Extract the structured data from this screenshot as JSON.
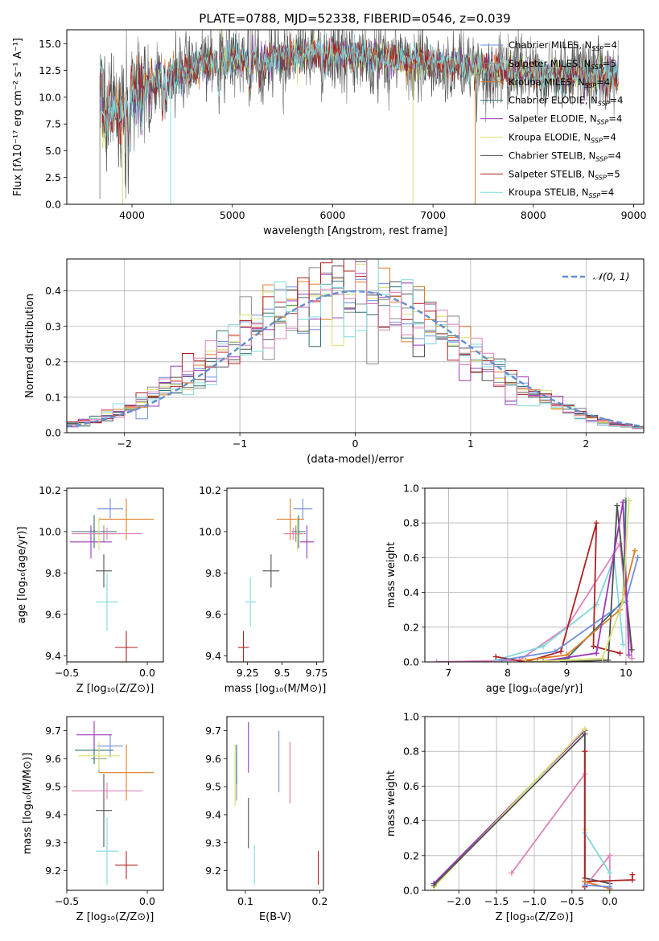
{
  "title": "PLATE=0788, MJD=52338, FIBERID=0546, z=0.039",
  "colors": [
    "#6f8fdc",
    "#8a8a8a",
    "#e07b20",
    "#2f6f6f",
    "#9a38b8",
    "#d8e070",
    "#505050",
    "#b22020",
    "#7fd8dc",
    "#e080b8"
  ],
  "chart_data": [
    {
      "id": "spectrum",
      "type": "line",
      "xlabel": "wavelength [Angstrom, rest frame]",
      "ylabel": "Flux [fλ10⁻¹⁷ erg cm⁻² s⁻¹ A⁻¹]",
      "xlim": [
        3350,
        9100
      ],
      "ylim": [
        0,
        16.3
      ],
      "xticks": [
        4000,
        5000,
        6000,
        7000,
        8000,
        9000
      ],
      "yticks": [
        0.0,
        2.5,
        5.0,
        7.5,
        10.0,
        12.5,
        15.0
      ],
      "legend_position": "top-right",
      "series": [
        {
          "name": "Chabrier MILES, N_SSP=4",
          "legend": "Chabrier MILES, N",
          "n": "4",
          "color": "#6f8fdc"
        },
        {
          "name": "Salpeter MILES, N_SSP=5",
          "legend": "Salpeter MILES, N",
          "n": "5",
          "color": "#8a8a8a"
        },
        {
          "name": "Kroupa MILES, N_SSP=4",
          "legend": "Kroupa MILES, N",
          "n": "4",
          "color": "#e07b20"
        },
        {
          "name": "Chabrier ELODIE, N_SSP=4",
          "legend": "Chabrier ELODIE, N",
          "n": "4",
          "color": "#2f6f6f"
        },
        {
          "name": "Salpeter ELODIE, N_SSP=4",
          "legend": "Salpeter ELODIE, N",
          "n": "4",
          "color": "#9a38b8"
        },
        {
          "name": "Kroupa ELODIE, N_SSP=4",
          "legend": "Kroupa ELODIE, N",
          "n": "4",
          "color": "#d8e070"
        },
        {
          "name": "Chabrier STELIB, N_SSP=4",
          "legend": "Chabrier STELIB, N",
          "n": "4",
          "color": "#505050"
        },
        {
          "name": "Salpeter STELIB, N_SSP=5",
          "legend": "Salpeter STELIB, N",
          "n": "5",
          "color": "#b22020"
        },
        {
          "name": "Kroupa STELIB, N_SSP=4",
          "legend": "Kroupa STELIB, N",
          "n": "4",
          "color": "#7fd8dc"
        }
      ],
      "continuum_x": [
        3700,
        3800,
        3900,
        4000,
        4100,
        4300,
        4500,
        4700,
        4900,
        5200,
        5500,
        6000,
        6500,
        7000,
        7500,
        8000,
        8500,
        8850
      ],
      "continuum_y": [
        8.0,
        8.5,
        8.8,
        10.2,
        11.0,
        11.8,
        12.3,
        13.1,
        13.5,
        13.3,
        13.8,
        14.1,
        13.6,
        13.2,
        12.8,
        12.3,
        12.1,
        11.9
      ],
      "dropouts": [
        {
          "x": 3680,
          "to": 0.5,
          "color": "#8a8a8a"
        },
        {
          "x": 3905,
          "to": 0.0,
          "color": "#d8e070"
        },
        {
          "x": 4385,
          "to": 0.0,
          "color": "#7fd8dc"
        },
        {
          "x": 6800,
          "to": 0.0,
          "color": "#d8e070"
        },
        {
          "x": 7420,
          "to": 0.0,
          "color": "#e07b20"
        }
      ]
    },
    {
      "id": "residuals",
      "type": "step",
      "xlabel": "(data-model)/error",
      "ylabel": "Normed distribution",
      "xlim": [
        -2.5,
        2.5
      ],
      "ylim": [
        0,
        0.49
      ],
      "xticks": [
        -2,
        -1,
        0,
        1,
        2
      ],
      "yticks": [
        0.0,
        0.1,
        0.2,
        0.3,
        0.4
      ],
      "grid": true,
      "legend_position": "top-right",
      "reference": {
        "name": "𝒩(0, 1)",
        "mean": 0,
        "sigma": 1,
        "color": "#6090d0"
      },
      "bin_width": 0.1
    },
    {
      "id": "age_vs_Z",
      "type": "errorbar",
      "xlabel": "Z [log₁₀(Z/Z⊙)]",
      "ylabel": "age  [log₁₀(age/yr)]",
      "xlim": [
        -0.5,
        0.1
      ],
      "ylim": [
        9.37,
        10.21
      ],
      "xticks": [
        -0.5,
        0.0
      ],
      "yticks": [
        9.4,
        9.6,
        9.8,
        10.0,
        10.2
      ],
      "points": [
        {
          "x": -0.23,
          "y": 10.11,
          "xerr": 0.08,
          "yerr": 0.05,
          "color": "#6f8fdc"
        },
        {
          "x": -0.27,
          "y": 9.99,
          "xerr": 0.07,
          "yerr": 0.04,
          "color": "#8a8a8a"
        },
        {
          "x": -0.13,
          "y": 10.06,
          "xerr": 0.17,
          "yerr": 0.1,
          "color": "#e07b20"
        },
        {
          "x": -0.33,
          "y": 10.0,
          "xerr": 0.14,
          "yerr": 0.08,
          "color": "#2f6f6f"
        },
        {
          "x": -0.35,
          "y": 9.95,
          "xerr": 0.13,
          "yerr": 0.08,
          "color": "#9a38b8"
        },
        {
          "x": -0.3,
          "y": 9.99,
          "xerr": 0.13,
          "yerr": 0.08,
          "color": "#d8e070"
        },
        {
          "x": -0.27,
          "y": 9.81,
          "xerr": 0.05,
          "yerr": 0.08,
          "color": "#505050"
        },
        {
          "x": -0.13,
          "y": 9.44,
          "xerr": 0.07,
          "yerr": 0.08,
          "color": "#b22020"
        },
        {
          "x": -0.25,
          "y": 9.66,
          "xerr": 0.07,
          "yerr": 0.14,
          "color": "#7fd8dc"
        },
        {
          "x": -0.25,
          "y": 9.99,
          "xerr": 0.22,
          "yerr": 0.03,
          "color": "#e080b8"
        }
      ]
    },
    {
      "id": "age_vs_mass",
      "type": "errorbar",
      "xlabel": "mass [log₁₀(M/M⊙)]",
      "xlim": [
        9.1,
        9.8
      ],
      "ylim": [
        9.37,
        10.21
      ],
      "xticks": [
        9.25,
        9.5,
        9.75
      ],
      "yticks": [
        9.4,
        9.6,
        9.8,
        10.0,
        10.2
      ],
      "points": [
        {
          "x": 9.65,
          "y": 10.11,
          "xerr": 0.07,
          "yerr": 0.05,
          "color": "#6f8fdc"
        },
        {
          "x": 9.6,
          "y": 9.99,
          "xerr": 0.07,
          "yerr": 0.04,
          "color": "#8a8a8a"
        },
        {
          "x": 9.56,
          "y": 10.06,
          "xerr": 0.1,
          "yerr": 0.1,
          "color": "#e07b20"
        },
        {
          "x": 9.62,
          "y": 10.0,
          "xerr": 0.05,
          "yerr": 0.08,
          "color": "#2f6f6f"
        },
        {
          "x": 9.68,
          "y": 9.95,
          "xerr": 0.05,
          "yerr": 0.08,
          "color": "#9a38b8"
        },
        {
          "x": 9.61,
          "y": 9.99,
          "xerr": 0.05,
          "yerr": 0.08,
          "color": "#d8e070"
        },
        {
          "x": 9.42,
          "y": 9.81,
          "xerr": 0.06,
          "yerr": 0.08,
          "color": "#505050"
        },
        {
          "x": 9.22,
          "y": 9.44,
          "xerr": 0.04,
          "yerr": 0.08,
          "color": "#b22020"
        },
        {
          "x": 9.27,
          "y": 9.66,
          "xerr": 0.04,
          "yerr": 0.12,
          "color": "#7fd8dc"
        },
        {
          "x": 9.58,
          "y": 9.99,
          "xerr": 0.07,
          "yerr": 0.03,
          "color": "#e080b8"
        }
      ]
    },
    {
      "id": "weight_vs_age",
      "type": "line",
      "xlabel": "age  [log₁₀(age/yr)]",
      "ylabel": "mass weight",
      "xlim": [
        6.6,
        10.3
      ],
      "ylim": [
        0,
        1.0
      ],
      "xticks": [
        7,
        8,
        9,
        10
      ],
      "yticks": [
        0.0,
        0.2,
        0.4,
        0.6,
        0.8,
        1.0
      ],
      "grid": true,
      "series": [
        {
          "color": "#e080b8",
          "x": [
            6.8,
            8.2,
            9.0,
            9.9,
            10.1
          ],
          "y": [
            0.0,
            0.01,
            0.2,
            0.68,
            0.02
          ]
        },
        {
          "color": "#7fd8dc",
          "x": [
            7.8,
            8.6,
            9.5,
            9.8,
            9.95
          ],
          "y": [
            0.01,
            0.09,
            0.33,
            0.6,
            0.1
          ]
        },
        {
          "color": "#b22020",
          "x": [
            7.8,
            8.3,
            8.9,
            9.5,
            9.45,
            9.9
          ],
          "y": [
            0.03,
            0.0,
            0.06,
            0.8,
            0.09,
            0.05
          ]
        },
        {
          "color": "#505050",
          "x": [
            8.9,
            9.7,
            9.85,
            10.1
          ],
          "y": [
            0.0,
            0.01,
            0.9,
            0.07
          ]
        },
        {
          "color": "#2f6f6f",
          "x": [
            8.6,
            9.0,
            9.95,
            10.0
          ],
          "y": [
            0.0,
            0.02,
            0.35,
            0.93
          ]
        },
        {
          "color": "#6f8fdc",
          "x": [
            7.9,
            8.8,
            10.0,
            10.2
          ],
          "y": [
            0.01,
            0.06,
            0.35,
            0.6
          ]
        },
        {
          "color": "#e07b20",
          "x": [
            8.3,
            9.0,
            9.9,
            10.15
          ],
          "y": [
            0.01,
            0.04,
            0.3,
            0.64
          ]
        },
        {
          "color": "#9a38b8",
          "x": [
            8.5,
            9.5,
            9.95,
            10.05
          ],
          "y": [
            0.0,
            0.05,
            0.92,
            0.04
          ]
        },
        {
          "color": "#d8e070",
          "x": [
            8.3,
            9.6,
            9.95,
            10.05
          ],
          "y": [
            0.0,
            0.02,
            0.35,
            0.93
          ]
        }
      ]
    },
    {
      "id": "mass_vs_Z",
      "type": "errorbar",
      "xlabel": "Z [log₁₀(Z/Z⊙)]",
      "ylabel": "mass [log₁₀(M/M⊙)]",
      "xlim": [
        -0.5,
        0.1
      ],
      "ylim": [
        9.13,
        9.75
      ],
      "xticks": [
        -0.5,
        0.0
      ],
      "yticks": [
        9.2,
        9.3,
        9.4,
        9.5,
        9.6,
        9.7
      ],
      "points": [
        {
          "x": -0.23,
          "y": 9.645,
          "xerr": 0.08,
          "yerr": 0.04,
          "color": "#6f8fdc"
        },
        {
          "x": -0.3,
          "y": 9.6,
          "xerr": 0.05,
          "yerr": 0.05,
          "color": "#8a8a8a"
        },
        {
          "x": -0.13,
          "y": 9.55,
          "xerr": 0.17,
          "yerr": 0.1,
          "color": "#e07b20"
        },
        {
          "x": -0.33,
          "y": 9.63,
          "xerr": 0.12,
          "yerr": 0.05,
          "color": "#2f6f6f"
        },
        {
          "x": -0.33,
          "y": 9.685,
          "xerr": 0.11,
          "yerr": 0.05,
          "color": "#9a38b8"
        },
        {
          "x": -0.3,
          "y": 9.61,
          "xerr": 0.13,
          "yerr": 0.05,
          "color": "#d8e070"
        },
        {
          "x": -0.27,
          "y": 9.415,
          "xerr": 0.05,
          "yerr": 0.13,
          "color": "#505050"
        },
        {
          "x": -0.13,
          "y": 9.22,
          "xerr": 0.07,
          "yerr": 0.05,
          "color": "#b22020"
        },
        {
          "x": -0.25,
          "y": 9.27,
          "xerr": 0.07,
          "yerr": 0.12,
          "color": "#7fd8dc"
        },
        {
          "x": -0.25,
          "y": 9.485,
          "xerr": 0.22,
          "yerr": 0.03,
          "color": "#e080b8"
        }
      ]
    },
    {
      "id": "mass_vs_ebv",
      "type": "errorbar",
      "xlabel": "E(B-V)",
      "xlim": [
        0.075,
        0.205
      ],
      "ylim": [
        9.13,
        9.75
      ],
      "xticks": [
        0.1,
        0.2
      ],
      "yticks": [
        9.2,
        9.3,
        9.4,
        9.5,
        9.6,
        9.7
      ],
      "points": [
        {
          "x": 0.145,
          "y": 9.59,
          "xerr": 0.0,
          "yerr": 0.11,
          "color": "#6f8fdc"
        },
        {
          "x": 0.088,
          "y": 9.52,
          "xerr": 0.0,
          "yerr": 0.07,
          "color": "#8a8a8a"
        },
        {
          "x": 0.16,
          "y": 9.55,
          "xerr": 0.0,
          "yerr": 0.11,
          "color": "#e07b20"
        },
        {
          "x": 0.088,
          "y": 9.58,
          "xerr": 0.0,
          "yerr": 0.07,
          "color": "#2f6f6f"
        },
        {
          "x": 0.104,
          "y": 9.64,
          "xerr": 0.0,
          "yerr": 0.09,
          "color": "#9a38b8"
        },
        {
          "x": 0.086,
          "y": 9.54,
          "xerr": 0.0,
          "yerr": 0.11,
          "color": "#d8e070"
        },
        {
          "x": 0.104,
          "y": 9.37,
          "xerr": 0.0,
          "yerr": 0.09,
          "color": "#505050"
        },
        {
          "x": 0.198,
          "y": 9.21,
          "xerr": 0.0,
          "yerr": 0.06,
          "color": "#b22020"
        },
        {
          "x": 0.112,
          "y": 9.22,
          "xerr": 0.0,
          "yerr": 0.07,
          "color": "#7fd8dc"
        },
        {
          "x": 0.16,
          "y": 9.55,
          "xerr": 0.0,
          "yerr": 0.11,
          "color": "#e080b8"
        }
      ]
    },
    {
      "id": "weight_vs_Z",
      "type": "line",
      "xlabel": "Z [log₁₀(Z/Z⊙)]",
      "ylabel": "mass weight",
      "xlim": [
        -2.45,
        0.45
      ],
      "ylim": [
        0,
        1.0
      ],
      "xticks": [
        -2.0,
        -1.5,
        -1.0,
        -0.5,
        0.0
      ],
      "yticks": [
        0.0,
        0.2,
        0.4,
        0.6,
        0.8,
        1.0
      ],
      "grid": true,
      "series": [
        {
          "color": "#9a38b8",
          "x": [
            -2.33,
            -0.33,
            -0.33
          ],
          "y": [
            0.04,
            0.92,
            0.05
          ]
        },
        {
          "color": "#d8e070",
          "x": [
            -2.33,
            -0.33,
            -0.33
          ],
          "y": [
            0.02,
            0.93,
            0.35
          ]
        },
        {
          "color": "#505050",
          "x": [
            -2.33,
            -0.33,
            -0.33,
            0.0
          ],
          "y": [
            0.03,
            0.9,
            0.07,
            0.04
          ]
        },
        {
          "color": "#e080b8",
          "x": [
            -1.3,
            -0.33,
            -0.33,
            0.0,
            0.0
          ],
          "y": [
            0.1,
            0.67,
            0.02,
            0.2,
            0.01
          ]
        },
        {
          "color": "#7fd8dc",
          "x": [
            -0.33,
            -0.33,
            0.0
          ],
          "y": [
            0.6,
            0.33,
            0.1
          ]
        },
        {
          "color": "#b22020",
          "x": [
            -0.33,
            -0.33,
            -0.33,
            0.3,
            0.3
          ],
          "y": [
            0.8,
            0.02,
            0.05,
            0.06,
            0.09
          ]
        },
        {
          "color": "#e07b20",
          "x": [
            -0.33,
            0.0
          ],
          "y": [
            0.05,
            0.01
          ]
        },
        {
          "color": "#6f8fdc",
          "x": [
            -0.33,
            0.0
          ],
          "y": [
            0.03,
            0.02
          ]
        }
      ]
    }
  ]
}
